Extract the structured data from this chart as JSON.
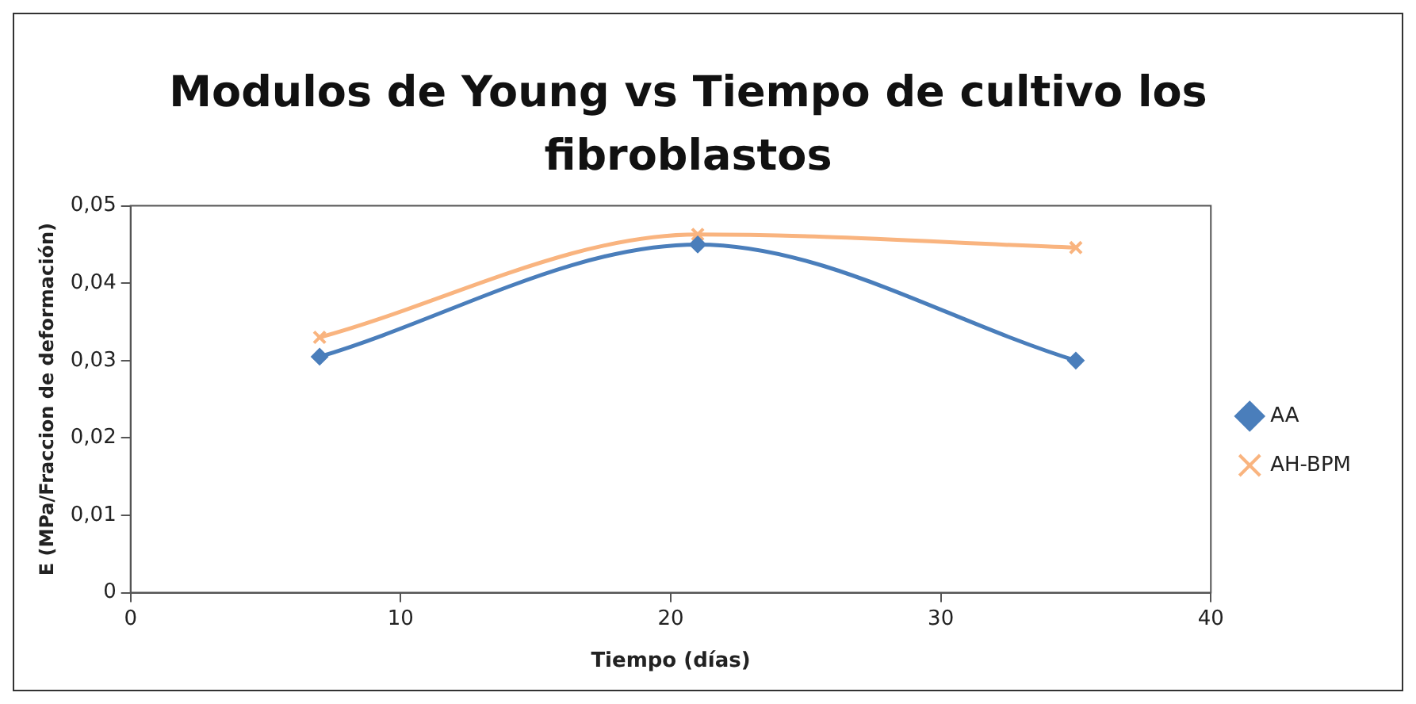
{
  "chart_data": {
    "type": "line",
    "title": "Modulos de Young vs Tiempo de cultivo los fibroblastos",
    "xlabel": "Tiempo (días)",
    "ylabel": "E (MPa/Fraccion de deformación)",
    "x": [
      7,
      21,
      35
    ],
    "series": [
      {
        "name": "AA",
        "color": "#4a7ebb",
        "values": [
          0.0305,
          0.045,
          0.03
        ],
        "marker": "diamond"
      },
      {
        "name": "AH-BPM",
        "color": "#f9b47f",
        "values": [
          0.033,
          0.0463,
          0.0446
        ],
        "marker": "cross"
      }
    ],
    "xlim": [
      0,
      40
    ],
    "xticks": [
      0,
      10,
      20,
      30,
      40
    ],
    "ylim": [
      0,
      0.05
    ],
    "yticks": [
      {
        "value": 0,
        "label": "0"
      },
      {
        "value": 0.01,
        "label": "0,01"
      },
      {
        "value": 0.02,
        "label": "0,02"
      },
      {
        "value": 0.03,
        "label": "0,03"
      },
      {
        "value": 0.04,
        "label": "0,04"
      },
      {
        "value": 0.05,
        "label": "0,05"
      }
    ],
    "grid": false,
    "legend": "right",
    "line_style": "solid"
  }
}
